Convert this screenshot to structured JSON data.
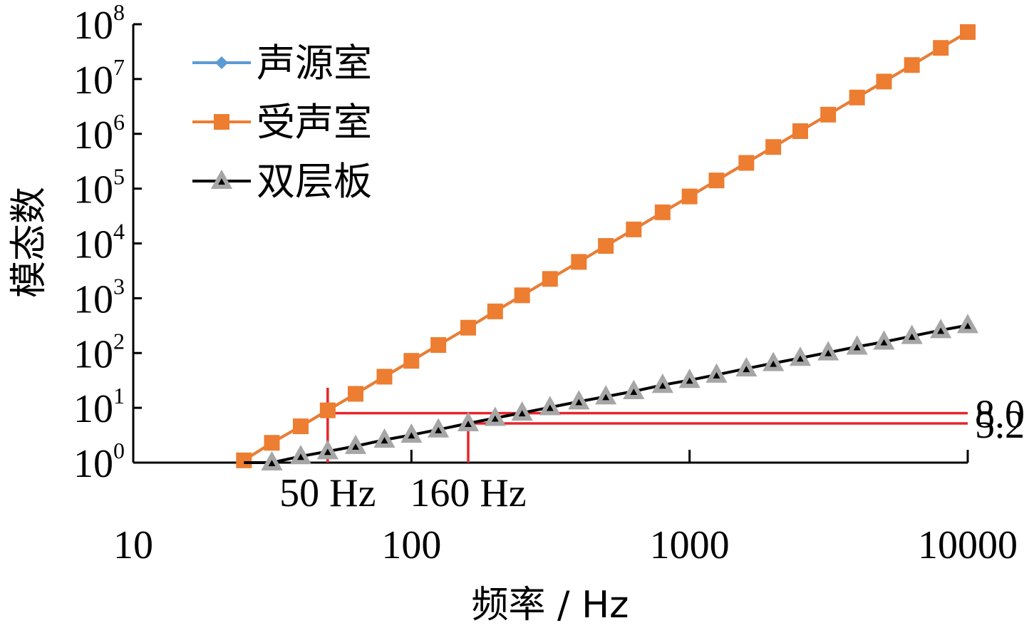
{
  "chart_data": {
    "type": "line",
    "xlabel": "频率 / Hz",
    "ylabel": "模态数",
    "x_scale": "log",
    "y_scale": "log",
    "xlim": [
      10,
      10000
    ],
    "ylim": [
      1,
      100000000
    ],
    "x_ticks": [
      "10",
      "100",
      "1000",
      "10000"
    ],
    "y_ticks": [
      {
        "base": "10",
        "exp": "0"
      },
      {
        "base": "10",
        "exp": "1"
      },
      {
        "base": "10",
        "exp": "2"
      },
      {
        "base": "10",
        "exp": "3"
      },
      {
        "base": "10",
        "exp": "4"
      },
      {
        "base": "10",
        "exp": "5"
      },
      {
        "base": "10",
        "exp": "6"
      },
      {
        "base": "10",
        "exp": "7"
      },
      {
        "base": "10",
        "exp": "8"
      }
    ],
    "legend_position": "top-left",
    "x": [
      25,
      31.5,
      40,
      50,
      63,
      80,
      100,
      125,
      160,
      200,
      250,
      315,
      400,
      500,
      630,
      800,
      1000,
      1250,
      1600,
      2000,
      2500,
      3150,
      4000,
      5000,
      6300,
      8000,
      10000
    ],
    "series": [
      {
        "name": "声源室",
        "color": "#5B9BD5",
        "marker": "diamond",
        "values": [
          1.1,
          2.3,
          4.6,
          9,
          18,
          37,
          72,
          140,
          290,
          575,
          1130,
          2250,
          4600,
          9000,
          18000,
          37000,
          72000,
          141000,
          295000,
          575000,
          1120000,
          2240000,
          4600000,
          9000000,
          18000000,
          37000000,
          72000000
        ]
      },
      {
        "name": "受声室",
        "color": "#ED7D31",
        "marker": "square",
        "values": [
          1.1,
          2.3,
          4.6,
          9,
          18,
          37,
          72,
          140,
          290,
          575,
          1130,
          2250,
          4600,
          9000,
          18000,
          37000,
          72000,
          141000,
          295000,
          575000,
          1120000,
          2240000,
          4600000,
          9000000,
          18000000,
          37000000,
          72000000
        ]
      },
      {
        "name": "双层板",
        "color": "#000000",
        "marker_color": "#A6A6A6",
        "marker": "triangle",
        "values": [
          0.8,
          1.0,
          1.3,
          1.6,
          2.0,
          2.6,
          3.2,
          4.0,
          5.2,
          6.5,
          8.1,
          10.2,
          13,
          16,
          20,
          26,
          32,
          40,
          52,
          65,
          81,
          102,
          130,
          160,
          203,
          260,
          320
        ]
      }
    ],
    "annotations": [
      {
        "x": 50,
        "y": 8.0,
        "x_label": "50 Hz",
        "y_label": "8.0",
        "color": "#E8252A"
      },
      {
        "x": 160,
        "y": 5.2,
        "x_label": "160 Hz",
        "y_label": "5.2",
        "color": "#E8252A"
      }
    ]
  }
}
